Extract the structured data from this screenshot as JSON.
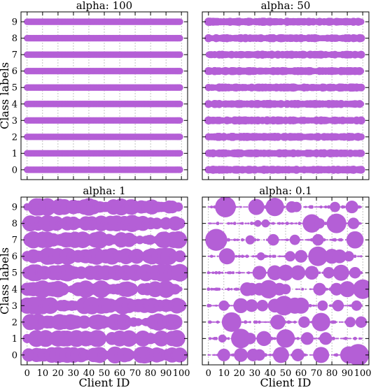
{
  "figure": {
    "marker_color": "#b45fd6",
    "ylabel": "Class labels",
    "xlabel": "Client ID"
  },
  "chart_data": [
    {
      "type": "scatter",
      "title": "alpha: 100",
      "alpha": 100,
      "xlabel": "",
      "ylabel": "Class labels",
      "xlim": [
        -4,
        104
      ],
      "ylim": [
        -0.6,
        9.6
      ],
      "x_ticks": [
        0,
        10,
        20,
        30,
        40,
        50,
        60,
        70,
        80,
        90,
        100
      ],
      "y_ticks": [
        0,
        1,
        2,
        3,
        4,
        5,
        6,
        7,
        8,
        9
      ],
      "show_x_tick_labels": false,
      "show_y_tick_labels": true,
      "grid": true,
      "clients": 100,
      "classes": 10,
      "marker_size": "uniform small (near-uniform class proportions, ~0.1 per class per client)"
    },
    {
      "type": "scatter",
      "title": "alpha: 50",
      "alpha": 50,
      "xlabel": "",
      "ylabel": "",
      "xlim": [
        -4,
        104
      ],
      "ylim": [
        -0.6,
        9.6
      ],
      "x_ticks": [
        0,
        10,
        20,
        30,
        40,
        50,
        60,
        70,
        80,
        90,
        100
      ],
      "y_ticks": [
        0,
        1,
        2,
        3,
        4,
        5,
        6,
        7,
        8,
        9
      ],
      "show_x_tick_labels": false,
      "show_y_tick_labels": false,
      "grid": true,
      "clients": 100,
      "classes": 10,
      "marker_size": "uniform small with slight variation"
    },
    {
      "type": "scatter",
      "title": "alpha: 1",
      "alpha": 1,
      "xlabel": "Client ID",
      "ylabel": "Class labels",
      "xlim": [
        -4,
        104
      ],
      "ylim": [
        -0.6,
        9.6
      ],
      "x_ticks": [
        0,
        10,
        20,
        30,
        40,
        50,
        60,
        70,
        80,
        90,
        100
      ],
      "y_ticks": [
        0,
        1,
        2,
        3,
        4,
        5,
        6,
        7,
        8,
        9
      ],
      "show_x_tick_labels": true,
      "show_y_tick_labels": true,
      "grid": true,
      "clients": 100,
      "classes": 10,
      "marker_size": "moderately varying"
    },
    {
      "type": "scatter",
      "title": "alpha: 0.1",
      "alpha": 0.1,
      "xlabel": "Client ID",
      "ylabel": "",
      "xlim": [
        -4,
        104
      ],
      "ylim": [
        -0.6,
        9.6
      ],
      "x_ticks": [
        0,
        10,
        20,
        30,
        40,
        50,
        60,
        70,
        80,
        90,
        100
      ],
      "y_ticks": [
        0,
        1,
        2,
        3,
        4,
        5,
        6,
        7,
        8,
        9
      ],
      "show_x_tick_labels": true,
      "show_y_tick_labels": false,
      "grid": true,
      "clients": 100,
      "classes": 10,
      "marker_size": "highly varying, sparse (few classes per client)",
      "large_points": [
        [
          11,
          9,
          0.9
        ],
        [
          31,
          9,
          0.7
        ],
        [
          43,
          9,
          0.8
        ],
        [
          54,
          9,
          0.5
        ],
        [
          57,
          9,
          0.45
        ],
        [
          82,
          9,
          0.45
        ],
        [
          93,
          9,
          0.55
        ],
        [
          32,
          8,
          0.3
        ],
        [
          37,
          8,
          0.35
        ],
        [
          67,
          8,
          0.8
        ],
        [
          72,
          8,
          0.45
        ],
        [
          83,
          8,
          0.85
        ],
        [
          94,
          8,
          0.5
        ],
        [
          5,
          7,
          0.95
        ],
        [
          7,
          7,
          0.7
        ],
        [
          27,
          7,
          0.4
        ],
        [
          42,
          7,
          0.5
        ],
        [
          56,
          7,
          0.45
        ],
        [
          71,
          7,
          0.5
        ],
        [
          95,
          7,
          0.75
        ],
        [
          12,
          6,
          0.7
        ],
        [
          34,
          6,
          0.35
        ],
        [
          53,
          6,
          0.45
        ],
        [
          60,
          6,
          0.55
        ],
        [
          71,
          6,
          0.85
        ],
        [
          80,
          6,
          0.65
        ],
        [
          85,
          6,
          0.6
        ],
        [
          91,
          6,
          0.45
        ],
        [
          33,
          5,
          0.6
        ],
        [
          43,
          5,
          0.65
        ],
        [
          50,
          5,
          0.7
        ],
        [
          58,
          5,
          0.65
        ],
        [
          67,
          5,
          0.6
        ],
        [
          78,
          5,
          0.5
        ],
        [
          86,
          5,
          0.7
        ],
        [
          95,
          5,
          0.5
        ],
        [
          25,
          4,
          0.6
        ],
        [
          28,
          4,
          0.55
        ],
        [
          33,
          4,
          0.55
        ],
        [
          39,
          4,
          0.8
        ],
        [
          46,
          4,
          0.55
        ],
        [
          50,
          4,
          0.45
        ],
        [
          72,
          4,
          0.55
        ],
        [
          83,
          4,
          0.55
        ],
        [
          90,
          4,
          0.7
        ],
        [
          100,
          4,
          0.85
        ],
        [
          10,
          3,
          0.45
        ],
        [
          21,
          3,
          0.65
        ],
        [
          28,
          3,
          0.55
        ],
        [
          35,
          3,
          0.5
        ],
        [
          43,
          3,
          0.6
        ],
        [
          49,
          3,
          0.85
        ],
        [
          56,
          3,
          0.7
        ],
        [
          60,
          3,
          0.7
        ],
        [
          74,
          3,
          0.45
        ],
        [
          84,
          3,
          0.5
        ],
        [
          96,
          3,
          0.45
        ],
        [
          15,
          2,
          0.85
        ],
        [
          45,
          2,
          0.65
        ],
        [
          62,
          2,
          0.5
        ],
        [
          73,
          2,
          0.8
        ],
        [
          92,
          2,
          0.45
        ],
        [
          99,
          2,
          0.5
        ],
        [
          9,
          1,
          0.35
        ],
        [
          21,
          1,
          0.85
        ],
        [
          27,
          1,
          0.5
        ],
        [
          36,
          1,
          0.65
        ],
        [
          50,
          1,
          0.8
        ],
        [
          64,
          1,
          0.55
        ],
        [
          76,
          1,
          0.55
        ],
        [
          10,
          0,
          0.55
        ],
        [
          21,
          0,
          0.6
        ],
        [
          29,
          0,
          0.55
        ],
        [
          33,
          0,
          0.5
        ],
        [
          47,
          0,
          0.7
        ],
        [
          58,
          0,
          0.55
        ],
        [
          73,
          0,
          0.7
        ],
        [
          91,
          0,
          0.75
        ],
        [
          97,
          0,
          0.95
        ]
      ]
    }
  ]
}
